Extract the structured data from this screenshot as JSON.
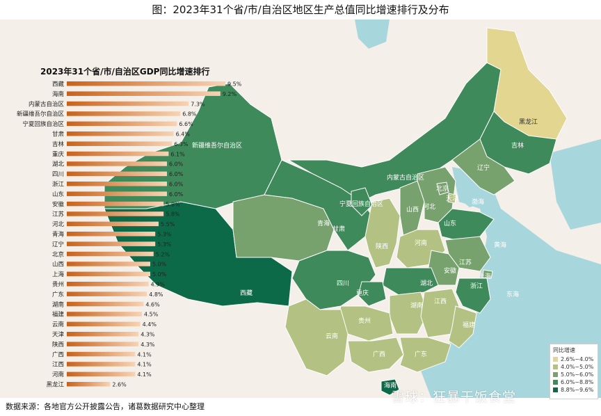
{
  "title": "图：2023年31个省/市/自治区地区生产总值同比增速排行及分布",
  "chart_data": {
    "type": "bar",
    "title": "2023年31个省/市/自治区GDP同比增速排行",
    "unit": "%",
    "categories": [
      "西藏",
      "海南",
      "内蒙古自治区",
      "新疆维吾尔自治区",
      "宁夏回族自治区",
      "甘肃",
      "吉林",
      "重庆",
      "湖北",
      "四川",
      "浙江",
      "山东",
      "安徽",
      "江苏",
      "河北",
      "青海",
      "辽宁",
      "北京",
      "山西",
      "上海",
      "贵州",
      "广东",
      "湖南",
      "福建",
      "云南",
      "天津",
      "陕西",
      "广西",
      "江西",
      "河南",
      "黑龙江"
    ],
    "values": [
      9.5,
      9.2,
      7.3,
      6.8,
      6.6,
      6.4,
      6.3,
      6.1,
      6.0,
      6.0,
      6.0,
      6.0,
      5.8,
      5.8,
      5.5,
      5.3,
      5.3,
      5.2,
      5.0,
      5.0,
      4.9,
      4.8,
      4.6,
      4.5,
      4.4,
      4.3,
      4.3,
      4.1,
      4.1,
      4.1,
      2.6
    ],
    "value_labels": [
      "9.5%",
      "9.2%",
      "7.3%",
      "6.8%",
      "6.6%",
      "6.4%",
      "6.3%",
      "6.1%",
      "6.0%",
      "6.0%",
      "6.0%",
      "6.0%",
      "5.8%",
      "5.8%",
      "5.5%",
      "5.3%",
      "5.3%",
      "5.2%",
      "5.0%",
      "5.0%",
      "4.9%",
      "4.8%",
      "4.6%",
      "4.5%",
      "4.4%",
      "4.3%",
      "4.3%",
      "4.1%",
      "4.1%",
      "4.1%",
      "2.6%"
    ],
    "xlim": [
      0,
      10
    ],
    "bar_colors": {
      "start": "#c8621c",
      "end": "#f7d3b4"
    }
  },
  "map": {
    "legend_title": "同比增速",
    "legend": [
      {
        "label": "2.6%~4.0%",
        "color": "#e2d690"
      },
      {
        "label": "4.0%~5.0%",
        "color": "#b3c283"
      },
      {
        "label": "5.0%~6.0%",
        "color": "#77a26e"
      },
      {
        "label": "6.0%~8.8%",
        "color": "#3f8a5a"
      },
      {
        "label": "8.8%~9.6%",
        "color": "#0d6a48"
      }
    ],
    "region_labels": [
      "西藏",
      "新疆维吾尔自治区",
      "内蒙古自治区",
      "黑龙江",
      "吉林",
      "辽宁",
      "北京",
      "天津",
      "河北",
      "山西",
      "宁夏回族自治区",
      "甘肃",
      "青海",
      "陕西",
      "河南",
      "山东",
      "江苏",
      "安徽",
      "上海",
      "浙江",
      "湖北",
      "四川",
      "重庆",
      "湖南",
      "江西",
      "贵州",
      "云南",
      "广西",
      "广东",
      "福建",
      "海南"
    ],
    "sea_labels": [
      "渤海",
      "黄海",
      "东海"
    ]
  },
  "watermark": "雪球：狂暴干饭食堂",
  "source": "数据来源：各地官方公开披露公告，诸葛数据研究中心整理"
}
